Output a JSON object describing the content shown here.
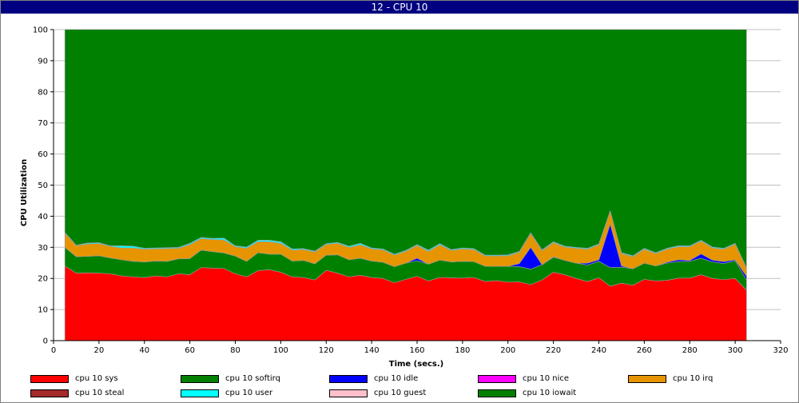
{
  "window": {
    "title": "12 - CPU 10"
  },
  "chart_data": {
    "type": "area",
    "stacked": true,
    "title": "12 - CPU 10",
    "xlabel": "Time (secs.)",
    "ylabel": "CPU Utilization",
    "xlim": [
      0,
      320
    ],
    "ylim": [
      0,
      100
    ],
    "x_ticks": [
      0,
      20,
      40,
      60,
      80,
      100,
      120,
      140,
      160,
      180,
      200,
      220,
      240,
      260,
      280,
      300,
      320
    ],
    "y_ticks": [
      0,
      10,
      20,
      30,
      40,
      50,
      60,
      70,
      80,
      90,
      100
    ],
    "grid": true,
    "legend_position": "bottom",
    "x": [
      5,
      10,
      15,
      20,
      25,
      30,
      35,
      40,
      45,
      50,
      55,
      60,
      65,
      70,
      75,
      80,
      85,
      90,
      95,
      100,
      105,
      110,
      115,
      120,
      125,
      130,
      135,
      140,
      145,
      150,
      155,
      160,
      165,
      170,
      175,
      180,
      185,
      190,
      195,
      200,
      205,
      210,
      215,
      220,
      225,
      230,
      235,
      240,
      245,
      250,
      255,
      260,
      265,
      270,
      275,
      280,
      285,
      290,
      295,
      300,
      305
    ],
    "series": [
      {
        "name": "cpu 10 sys",
        "color": "#ff0000",
        "values": [
          24,
          21.7,
          21.8,
          21.7,
          21.5,
          20.8,
          20.5,
          20.3,
          20.8,
          20.5,
          21.5,
          21.2,
          23.5,
          23.3,
          23.2,
          21.5,
          20.5,
          22.5,
          22.8,
          22,
          20.5,
          20.3,
          19.5,
          22.6,
          21.7,
          20.5,
          21,
          20.3,
          20,
          18.6,
          19.7,
          20.7,
          19.2,
          20.3,
          20.2,
          20.1,
          20.3,
          19,
          19.3,
          18.8,
          18.9,
          18,
          19.5,
          22,
          21.2,
          20,
          19,
          20.2,
          17.5,
          18.5,
          17.8,
          19.7,
          19.2,
          19.4,
          20.1,
          20.1,
          21.2,
          20,
          19.6,
          20,
          16.2
        ]
      },
      {
        "name": "cpu 10 softirq",
        "color": "#008000",
        "values": [
          6,
          5.3,
          5.3,
          5.6,
          5.1,
          5.2,
          5,
          5,
          4.8,
          5,
          4.8,
          5.2,
          5.6,
          5.3,
          5,
          5.7,
          5,
          5.8,
          5,
          5.8,
          5.1,
          5.5,
          5.2,
          4.9,
          5.9,
          5.5,
          5.5,
          5.3,
          5.2,
          5.2,
          5.2,
          5,
          5.4,
          5.6,
          5.1,
          5.4,
          5.1,
          4.9,
          4.6,
          5.1,
          4.9,
          5,
          4.9,
          4.8,
          4.6,
          4.9,
          5.3,
          5.3,
          6,
          5.1,
          5.3,
          5.2,
          4.8,
          5.5,
          5.3,
          5.4,
          5.3,
          5.3,
          5.2,
          5.7,
          3.3
        ]
      },
      {
        "name": "cpu 10 idle",
        "color": "#0000ff",
        "values": [
          0,
          0,
          0,
          0,
          0,
          0,
          0,
          0,
          0,
          0,
          0,
          0,
          0,
          0,
          0,
          0,
          0,
          0,
          0,
          0,
          0,
          0,
          0,
          0,
          0,
          0,
          0,
          0,
          0,
          0,
          0,
          0.8,
          0,
          0,
          0,
          0,
          0,
          0,
          0,
          0,
          1,
          7,
          0,
          0.2,
          0,
          0,
          0.6,
          0.5,
          14,
          0.4,
          0,
          0,
          0,
          0.3,
          0.6,
          0.3,
          1.4,
          0.6,
          0.6,
          0.3,
          1.2
        ]
      },
      {
        "name": "cpu 10 nice",
        "color": "#ff00ff",
        "values": [
          0,
          0,
          0,
          0,
          0,
          0,
          0,
          0,
          0,
          0,
          0,
          0,
          0,
          0,
          0,
          0,
          0,
          0,
          0,
          0,
          0,
          0,
          0,
          0,
          0,
          0,
          0,
          0,
          0,
          0,
          0,
          0,
          0,
          0,
          0,
          0,
          0,
          0,
          0,
          0,
          0,
          0,
          0,
          0,
          0,
          0,
          0,
          0,
          0,
          0,
          0,
          0,
          0,
          0,
          0,
          0,
          0,
          0,
          0,
          0,
          0
        ]
      },
      {
        "name": "cpu 10 irq",
        "color": "#e69500",
        "values": [
          4.5,
          3.5,
          4,
          3.9,
          3.7,
          3.8,
          4.3,
          4.1,
          3.9,
          4.1,
          3.4,
          4.5,
          3.7,
          3.9,
          4.2,
          3,
          4.2,
          3.5,
          4,
          3.5,
          3.5,
          3.5,
          3.8,
          3.4,
          3.7,
          4,
          4.3,
          3.9,
          4,
          3.7,
          3.8,
          4.1,
          4.1,
          4.9,
          3.7,
          4,
          3.9,
          3.3,
          3.3,
          3.4,
          3.6,
          4.4,
          4.5,
          4.5,
          4.3,
          4.8,
          4.5,
          4.8,
          4,
          4,
          3.9,
          4.5,
          4,
          4.2,
          4.2,
          4.4,
          4.1,
          3.9,
          4,
          5,
          2.5
        ]
      },
      {
        "name": "cpu 10 steal",
        "color": "#a52a2a",
        "values": [
          0,
          0,
          0,
          0,
          0,
          0,
          0,
          0,
          0,
          0,
          0,
          0,
          0,
          0,
          0,
          0,
          0,
          0,
          0,
          0,
          0,
          0,
          0,
          0,
          0,
          0,
          0,
          0,
          0,
          0,
          0,
          0,
          0,
          0,
          0,
          0,
          0,
          0,
          0,
          0,
          0,
          0,
          0,
          0,
          0,
          0,
          0,
          0,
          0,
          0,
          0,
          0,
          0,
          0,
          0,
          0,
          0,
          0,
          0,
          0,
          0
        ]
      },
      {
        "name": "cpu 10 user",
        "color": "#00ffff",
        "values": [
          0.3,
          0.2,
          0.3,
          0.3,
          0.2,
          0.7,
          0.6,
          0.3,
          0.3,
          0.3,
          0.3,
          0.4,
          0.4,
          0.4,
          0.6,
          0.3,
          0.4,
          0.5,
          0.5,
          0.5,
          0.4,
          0.3,
          0.3,
          0.3,
          0.3,
          0.4,
          0.5,
          0.3,
          0.3,
          0.3,
          0.3,
          0.3,
          0.4,
          0.4,
          0.3,
          0.3,
          0.3,
          0.3,
          0.3,
          0.3,
          0.3,
          0.3,
          0.3,
          0.3,
          0.3,
          0.3,
          0.3,
          0.3,
          0.3,
          0.3,
          0.3,
          0.3,
          0.3,
          0.3,
          0.3,
          0.3,
          0.3,
          0.3,
          0.3,
          0.3,
          0.3
        ]
      },
      {
        "name": "cpu 10 guest",
        "color": "#ffc0cb",
        "values": [
          0,
          0,
          0,
          0,
          0,
          0,
          0,
          0,
          0,
          0,
          0,
          0,
          0,
          0,
          0,
          0,
          0,
          0,
          0,
          0,
          0,
          0,
          0,
          0,
          0,
          0,
          0,
          0,
          0,
          0,
          0,
          0,
          0,
          0,
          0,
          0,
          0,
          0,
          0,
          0,
          0,
          0,
          0,
          0,
          0,
          0,
          0,
          0,
          0,
          0,
          0,
          0,
          0,
          0,
          0,
          0,
          0,
          0,
          0,
          0,
          0
        ]
      },
      {
        "name": "cpu 10 iowait",
        "color": "#008000",
        "values": [
          65.2,
          69.3,
          68.6,
          68.5,
          69.5,
          69.5,
          69.6,
          70.3,
          70.2,
          70.1,
          70,
          68.7,
          66.8,
          67.1,
          67,
          69.5,
          69.9,
          67.7,
          67.7,
          68.2,
          70.5,
          70.4,
          71.2,
          68.8,
          68.4,
          69.6,
          68.7,
          70.2,
          70.5,
          72.2,
          71,
          69.1,
          70.9,
          68.8,
          70.7,
          70.2,
          70.4,
          72.5,
          72.5,
          72.4,
          71.3,
          65.3,
          70.8,
          68.2,
          69.6,
          70,
          70.3,
          68.9,
          58.2,
          71.7,
          72.7,
          70.3,
          71.7,
          70.3,
          69.5,
          69.5,
          67.7,
          69.9,
          70.3,
          68.7,
          76.5
        ]
      }
    ],
    "legend": [
      {
        "label": "cpu 10 sys",
        "color": "#ff0000"
      },
      {
        "label": "cpu 10 softirq",
        "color": "#008000"
      },
      {
        "label": "cpu 10 idle",
        "color": "#0000ff"
      },
      {
        "label": "cpu 10 nice",
        "color": "#ff00ff"
      },
      {
        "label": "cpu 10 irq",
        "color": "#e69500"
      },
      {
        "label": "cpu 10 steal",
        "color": "#a52a2a"
      },
      {
        "label": "cpu 10 user",
        "color": "#00ffff"
      },
      {
        "label": "cpu 10 guest",
        "color": "#ffc0cb"
      },
      {
        "label": "cpu 10 iowait",
        "color": "#008000"
      }
    ]
  }
}
